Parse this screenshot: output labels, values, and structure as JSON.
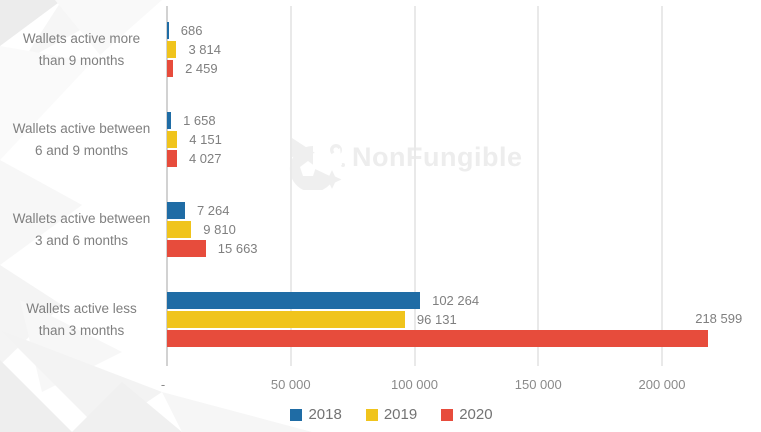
{
  "watermark": {
    "text": "NonFungible"
  },
  "colors": {
    "series_2018": "#1f6ca5",
    "series_2019": "#f0c41c",
    "series_2020": "#e74c3c",
    "gridline": "#e9e9e9",
    "axis_line": "#d2d2d2",
    "label_text": "#7f7f7f",
    "axis_text": "#8a8a8a",
    "watermark_gray": "#ededed"
  },
  "chart_data": {
    "type": "bar",
    "orientation": "horizontal",
    "title": "",
    "xlabel": "",
    "ylabel": "",
    "xlim": [
      0,
      240000
    ],
    "grid": true,
    "legend_position": "bottom-center",
    "number_format": "space-thousands",
    "categories": [
      {
        "lines": [
          "Wallets active more",
          "than 9 months"
        ]
      },
      {
        "lines": [
          "Wallets active between",
          "6 and 9 months"
        ]
      },
      {
        "lines": [
          "Wallets active between",
          "3 and 6 months"
        ]
      },
      {
        "lines": [
          "Wallets active less",
          "than 3 months"
        ]
      }
    ],
    "series": [
      {
        "name": "2018",
        "color": "#1f6ca5",
        "values": [
          686,
          1658,
          7264,
          102264
        ],
        "labels": [
          "686",
          "1 658",
          "7 264",
          "102 264"
        ]
      },
      {
        "name": "2019",
        "color": "#f0c41c",
        "values": [
          3814,
          4151,
          9810,
          96131
        ],
        "labels": [
          "3 814",
          "4 151",
          "9 810",
          "96 131"
        ]
      },
      {
        "name": "2020",
        "color": "#e74c3c",
        "values": [
          2459,
          4027,
          15663,
          218599
        ],
        "labels": [
          "2 459",
          "4 027",
          "15 663",
          "218 599"
        ]
      }
    ],
    "x_axis": {
      "max": 240000,
      "ticks": [
        {
          "value": 0,
          "label": "-"
        },
        {
          "value": 50000,
          "label": "50 000"
        },
        {
          "value": 100000,
          "label": "100 000"
        },
        {
          "value": 150000,
          "label": "150 000"
        },
        {
          "value": 200000,
          "label": "200 000"
        }
      ]
    }
  }
}
